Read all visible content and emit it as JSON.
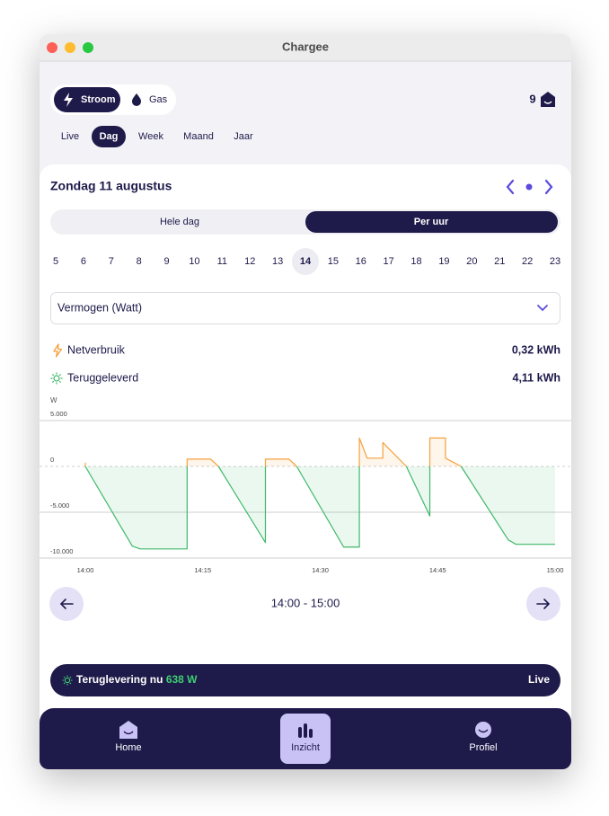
{
  "window": {
    "title": "Chargee"
  },
  "energy_toggle": [
    "Stroom",
    "Gas"
  ],
  "notifications": {
    "count": 9
  },
  "periods": [
    "Live",
    "Dag",
    "Week",
    "Maand",
    "Jaar"
  ],
  "date": "Zondag 11 augustus",
  "view_toggle": [
    "Hele dag",
    "Per uur"
  ],
  "hours": [
    5,
    6,
    7,
    8,
    9,
    10,
    11,
    12,
    13,
    14,
    15,
    16,
    17,
    18,
    19,
    20,
    21,
    22,
    23
  ],
  "dropdown": "Vermogen (Watt)",
  "chart_data": {
    "type": "line",
    "y_label": "W",
    "x": [
      "14:00",
      "14:00",
      "14:06",
      "14:07",
      "14:13",
      "14:13",
      "14:13",
      "14:16",
      "14:17",
      "14:23",
      "14:23",
      "14:23",
      "14:26",
      "14:27",
      "14:33",
      "14:35",
      "14:35",
      "14:35",
      "14:36",
      "14:38",
      "14:38",
      "14:41",
      "14:44",
      "14:44",
      "14:44",
      "14:46",
      "14:46",
      "14:48",
      "14:54",
      "14:55",
      "15:00"
    ],
    "xlim": [
      "14:00",
      "15:00"
    ],
    "xticks": [
      "14:00",
      "14:15",
      "14:30",
      "14:45",
      "15:00"
    ],
    "ylim": [
      -10000,
      5000
    ],
    "yticks": [
      {
        "value": 5000,
        "label": "5.000"
      },
      0,
      {
        "value": -5000,
        "label": "-5.000"
      },
      {
        "value": -10000,
        "label": "-10.000"
      }
    ],
    "series": [
      {
        "name": "Netverbruik",
        "total": "0,32 kWh",
        "color": "#f5a13d",
        "values": [
          400,
          0,
          null,
          null,
          null,
          0,
          800,
          800,
          0,
          null,
          0,
          800,
          800,
          0,
          null,
          null,
          0,
          3100,
          900,
          900,
          2600,
          0,
          null,
          0,
          3100,
          3100,
          900,
          0,
          null,
          null,
          null
        ]
      },
      {
        "name": "Teruggeleverd",
        "total": "4,11 kWh",
        "color": "#3fb86a",
        "values": [
          null,
          0,
          -8700,
          -9000,
          -9000,
          0,
          null,
          null,
          0,
          -8300,
          0,
          null,
          null,
          0,
          -8800,
          -8800,
          0,
          null,
          null,
          null,
          null,
          0,
          -5400,
          0,
          null,
          null,
          null,
          0,
          -8000,
          -8500,
          -8500
        ]
      }
    ]
  },
  "range": "14:00 - 15:00",
  "live_banner": {
    "label": "Teruglevering nu",
    "value": "638 W",
    "badge": "Live"
  },
  "nav": [
    "Home",
    "Inzicht",
    "Profiel"
  ]
}
